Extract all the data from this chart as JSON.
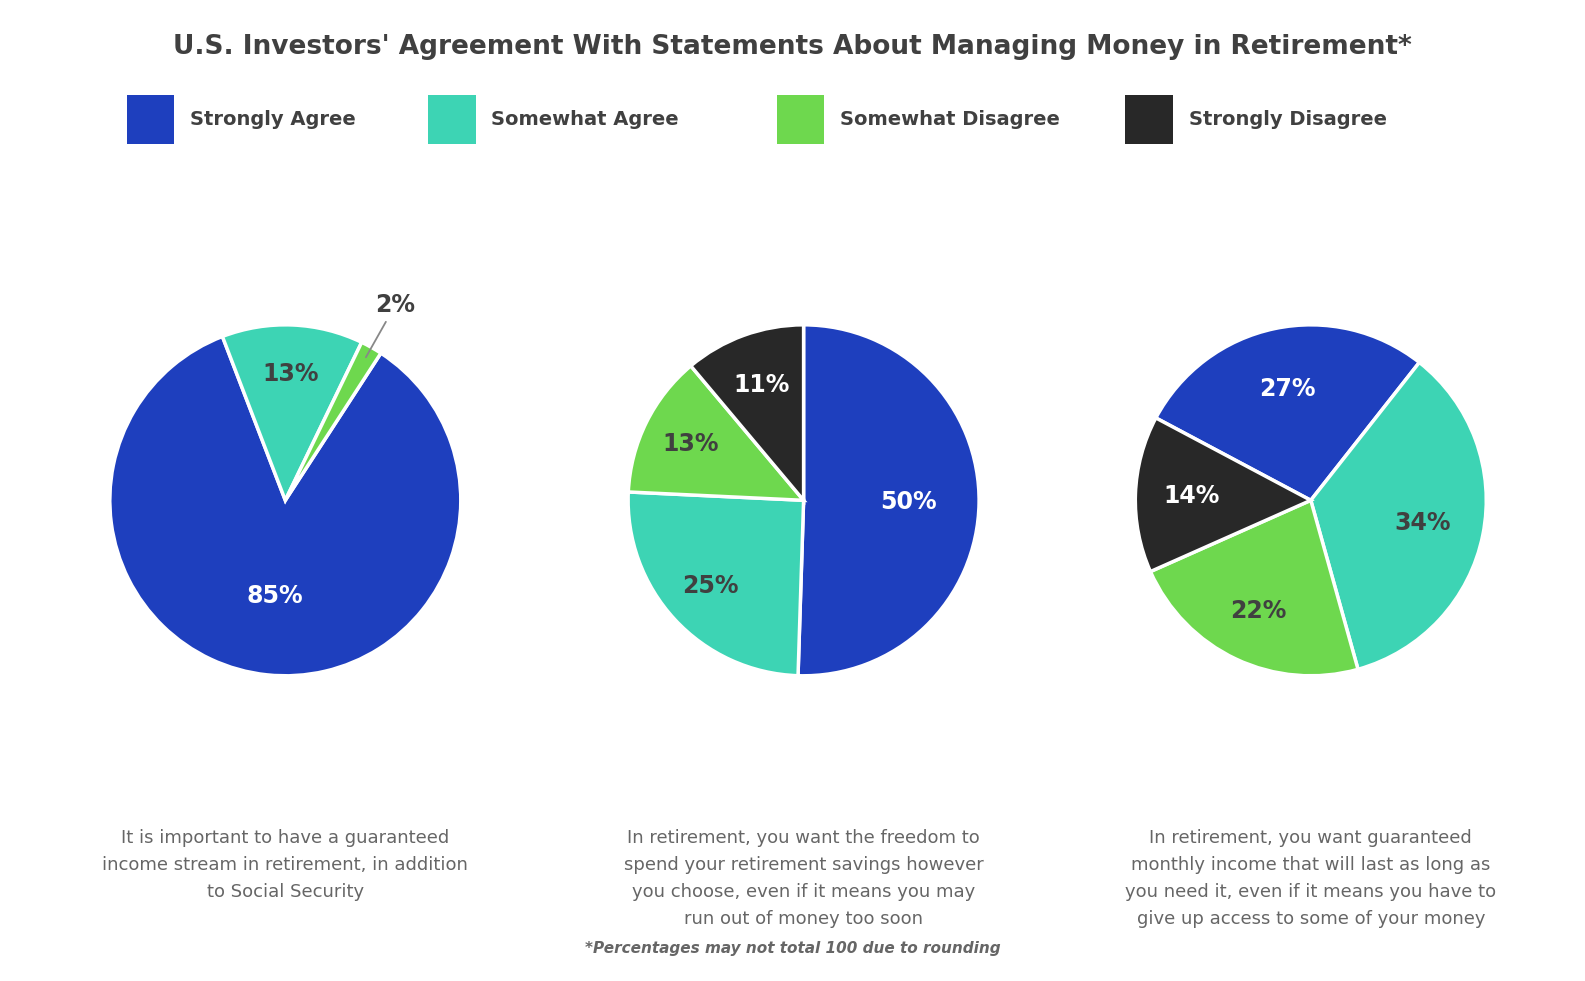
{
  "title": "U.S. Investors' Agreement With Statements About Managing Money in Retirement*",
  "title_color": "#404040",
  "title_fontsize": 19,
  "background_color": "#ffffff",
  "legend_labels": [
    "Strongly Agree",
    "Somewhat Agree",
    "Somewhat Disagree",
    "Strongly Disagree"
  ],
  "colors": [
    "#1e3fbe",
    "#3dd4b4",
    "#6ed84e",
    "#282828"
  ],
  "pie1": {
    "values": [
      85,
      13,
      2
    ],
    "colors_idx": [
      0,
      1,
      2
    ],
    "labels": [
      "85%",
      "13%",
      "2%"
    ],
    "label_colors": [
      "#ffffff",
      "#404040",
      "#404040"
    ],
    "label_radii": [
      0.55,
      0.72,
      1.25
    ],
    "label_outside": [
      false,
      false,
      true
    ],
    "startangle": 57,
    "counterclock": false,
    "caption": "It is important to have a guaranteed\nincome stream in retirement, in addition\nto Social Security"
  },
  "pie2": {
    "values": [
      50,
      25,
      13,
      11
    ],
    "colors_idx": [
      0,
      1,
      2,
      3
    ],
    "labels": [
      "50%",
      "25%",
      "13%",
      "11%"
    ],
    "label_colors": [
      "#ffffff",
      "#404040",
      "#404040",
      "#ffffff"
    ],
    "label_radii": [
      0.6,
      0.72,
      0.72,
      0.7
    ],
    "label_outside": [
      false,
      false,
      false,
      false
    ],
    "startangle": 90,
    "counterclock": false,
    "caption": "In retirement, you want the freedom to\nspend your retirement savings however\nyou choose, even if it means you may\nrun out of money too soon"
  },
  "pie3": {
    "values": [
      27,
      34,
      22,
      14
    ],
    "colors_idx": [
      0,
      1,
      2,
      3
    ],
    "labels": [
      "27%",
      "34%",
      "22%",
      "14%"
    ],
    "label_colors": [
      "#ffffff",
      "#404040",
      "#404040",
      "#ffffff"
    ],
    "label_radii": [
      0.65,
      0.65,
      0.7,
      0.68
    ],
    "label_outside": [
      false,
      false,
      false,
      false
    ],
    "startangle": 152,
    "counterclock": false,
    "caption": "In retirement, you want guaranteed\nmonthly income that will last as long as\nyou need it, even if it means you have to\ngive up access to some of your money"
  },
  "note": "*Percentages may not total 100 due to rounding",
  "label_fontsize": 17,
  "caption_fontsize": 13,
  "caption_color": "#666666"
}
